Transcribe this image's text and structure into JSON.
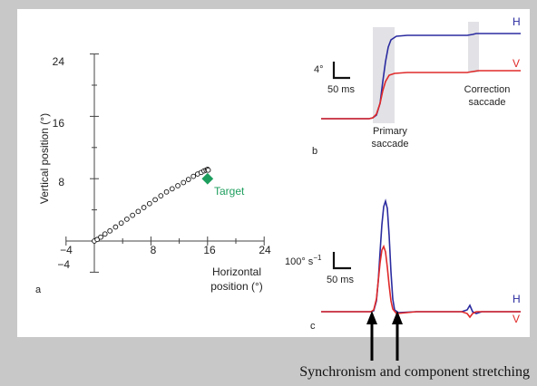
{
  "panel_a": {
    "label": "a",
    "y_axis_label": "Vertical position (°)",
    "x_axis_label_line1": "Horizontal",
    "x_axis_label_line2": "position (°)",
    "x_ticks": [
      "−4",
      "8",
      "16",
      "24"
    ],
    "y_ticks": [
      "24",
      "16",
      "8",
      "−4"
    ],
    "target_label": "Target",
    "target_color": "#1e9e5e",
    "target_position": [
      16,
      8
    ],
    "trajectory_points": [
      [
        0,
        0
      ],
      [
        0.4,
        0.2
      ],
      [
        0.9,
        0.5
      ],
      [
        1.5,
        0.9
      ],
      [
        2.2,
        1.3
      ],
      [
        3,
        1.8
      ],
      [
        3.8,
        2.3
      ],
      [
        4.6,
        2.8
      ],
      [
        5.4,
        3.3
      ],
      [
        6.2,
        3.8
      ],
      [
        7,
        4.3
      ],
      [
        7.8,
        4.8
      ],
      [
        8.6,
        5.3
      ],
      [
        9.4,
        5.8
      ],
      [
        10.2,
        6.3
      ],
      [
        11,
        6.7
      ],
      [
        11.8,
        7.1
      ],
      [
        12.6,
        7.5
      ],
      [
        13.3,
        7.9
      ],
      [
        14,
        8.3
      ],
      [
        14.6,
        8.6
      ],
      [
        15.1,
        8.8
      ],
      [
        15.5,
        9
      ],
      [
        15.8,
        9.1
      ],
      [
        16,
        9.2
      ],
      [
        16.1,
        9.1
      ]
    ]
  },
  "panel_b": {
    "label": "b",
    "scale_y_label": "4°",
    "scale_x_label": "50 ms",
    "trace_H_label": "H",
    "trace_V_label": "V",
    "color_H": "#2b2ba0",
    "color_V": "#e02a2a",
    "primary_label_line1": "Primary",
    "primary_label_line2": "saccade",
    "correction_label_line1": "Correction",
    "correction_label_line2": "saccade"
  },
  "panel_c": {
    "label": "c",
    "scale_y_label": "100° s",
    "scale_y_sup": "−1",
    "scale_x_label": "50 ms",
    "trace_H_label": "H",
    "trace_V_label": "V"
  },
  "caption": "Synchronism and component stretching"
}
